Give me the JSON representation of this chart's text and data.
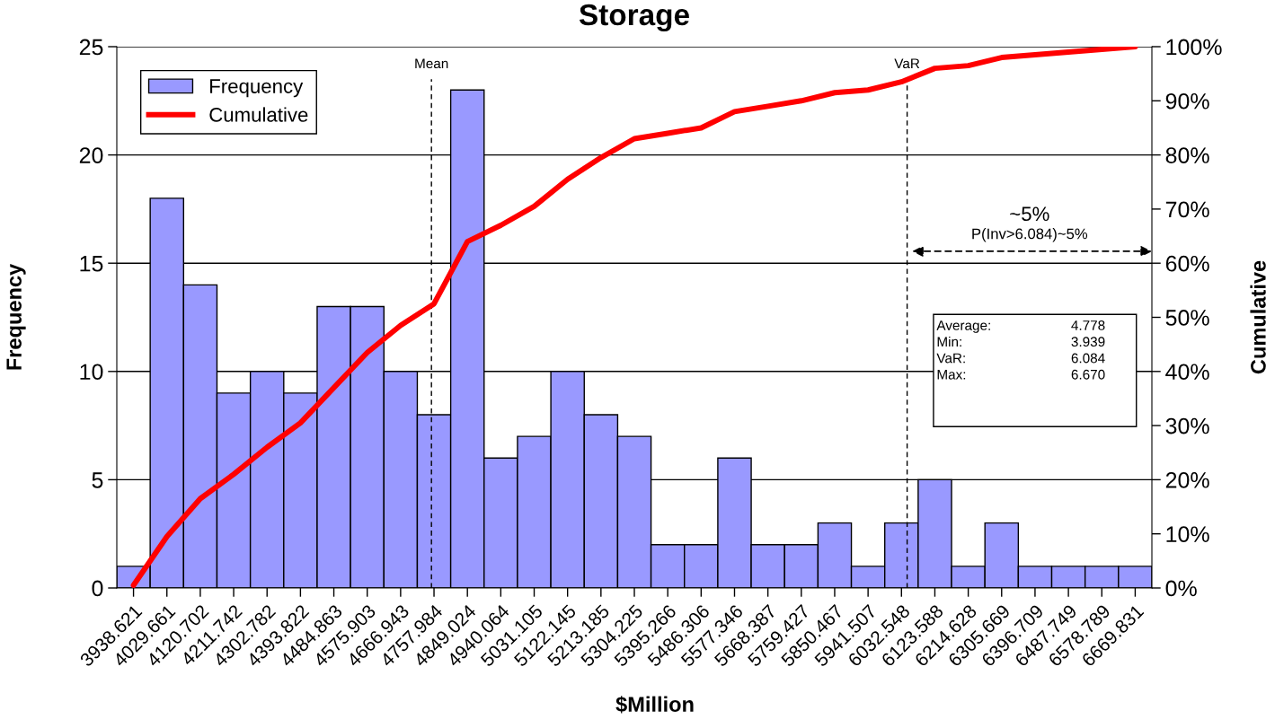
{
  "chart_data": {
    "type": "bar",
    "title": "Storage",
    "xlabel": "$Million",
    "ylabel": "Frequency",
    "y2label": "Cumulative",
    "x": [
      3938.621,
      4029.661,
      4120.702,
      4211.742,
      4302.782,
      4393.822,
      4484.863,
      4575.903,
      4666.943,
      4757.984,
      4849.024,
      4940.064,
      5031.105,
      5122.145,
      5213.185,
      5304.225,
      5395.266,
      5486.306,
      5577.346,
      5668.387,
      5759.427,
      5850.467,
      5941.507,
      6032.548,
      6123.588,
      6214.628,
      6305.669,
      6396.709,
      6487.749,
      6578.789,
      6669.831
    ],
    "series": [
      {
        "name": "Frequency",
        "type": "bar",
        "color": "#9999ff",
        "values": [
          1,
          18,
          14,
          9,
          10,
          9,
          13,
          13,
          10,
          8,
          23,
          6,
          7,
          10,
          8,
          7,
          2,
          2,
          6,
          2,
          2,
          3,
          1,
          3,
          5,
          1,
          3,
          1,
          1,
          1,
          1
        ]
      },
      {
        "name": "Cumulative",
        "type": "line",
        "axis": "y2",
        "color": "#ff0000",
        "values": [
          0.5,
          9.5,
          16.5,
          21,
          26,
          30.5,
          37,
          43.5,
          48.5,
          52.5,
          64,
          67,
          70.5,
          75.5,
          79.5,
          83,
          84,
          85,
          88,
          89,
          90,
          91.5,
          92,
          93.5,
          96,
          96.5,
          98,
          98.5,
          99,
          99.5,
          100
        ]
      }
    ],
    "xlim": [
      3893.1,
      6715.35
    ],
    "xticks": [
      3938.621,
      4029.661,
      4120.702,
      4211.742,
      4302.782,
      4393.822,
      4484.863,
      4575.903,
      4666.943,
      4757.984,
      4849.024,
      4940.064,
      5031.105,
      5122.145,
      5213.185,
      5304.225,
      5395.266,
      5486.306,
      5577.346,
      5668.387,
      5759.427,
      5850.467,
      5941.507,
      6032.548,
      6123.588,
      6214.628,
      6305.669,
      6396.709,
      6487.749,
      6578.789,
      6669.831
    ],
    "ylim": [
      0,
      25
    ],
    "yticks": [
      0,
      5,
      10,
      15,
      20,
      25
    ],
    "y2lim": [
      0,
      100
    ],
    "y2ticks": [
      {
        "value": 0,
        "label": "0%"
      },
      {
        "value": 10,
        "label": "10%"
      },
      {
        "value": 20,
        "label": "20%"
      },
      {
        "value": 30,
        "label": "30%"
      },
      {
        "value": 40,
        "label": "40%"
      },
      {
        "value": 50,
        "label": "50%"
      },
      {
        "value": 60,
        "label": "60%"
      },
      {
        "value": 70,
        "label": "70%"
      },
      {
        "value": 80,
        "label": "80%"
      },
      {
        "value": 90,
        "label": "90%"
      },
      {
        "value": 100,
        "label": "100%"
      }
    ],
    "grid": "y",
    "legend": "top left",
    "ref_lines": [
      {
        "axis": "x",
        "value": 4751,
        "label": "Mean",
        "line_style": "dashed",
        "color": "#000000"
      },
      {
        "axis": "x",
        "value": 6048,
        "label": "VaR",
        "line_style": "dashed",
        "color": "#000000"
      }
    ],
    "annotations": [
      "~5%",
      "P(Inv>6.084)~5%",
      "Average:",
      "4.778",
      "Min:",
      "3.939",
      "VaR:",
      "6.084",
      "Max:",
      "6.670"
    ]
  }
}
